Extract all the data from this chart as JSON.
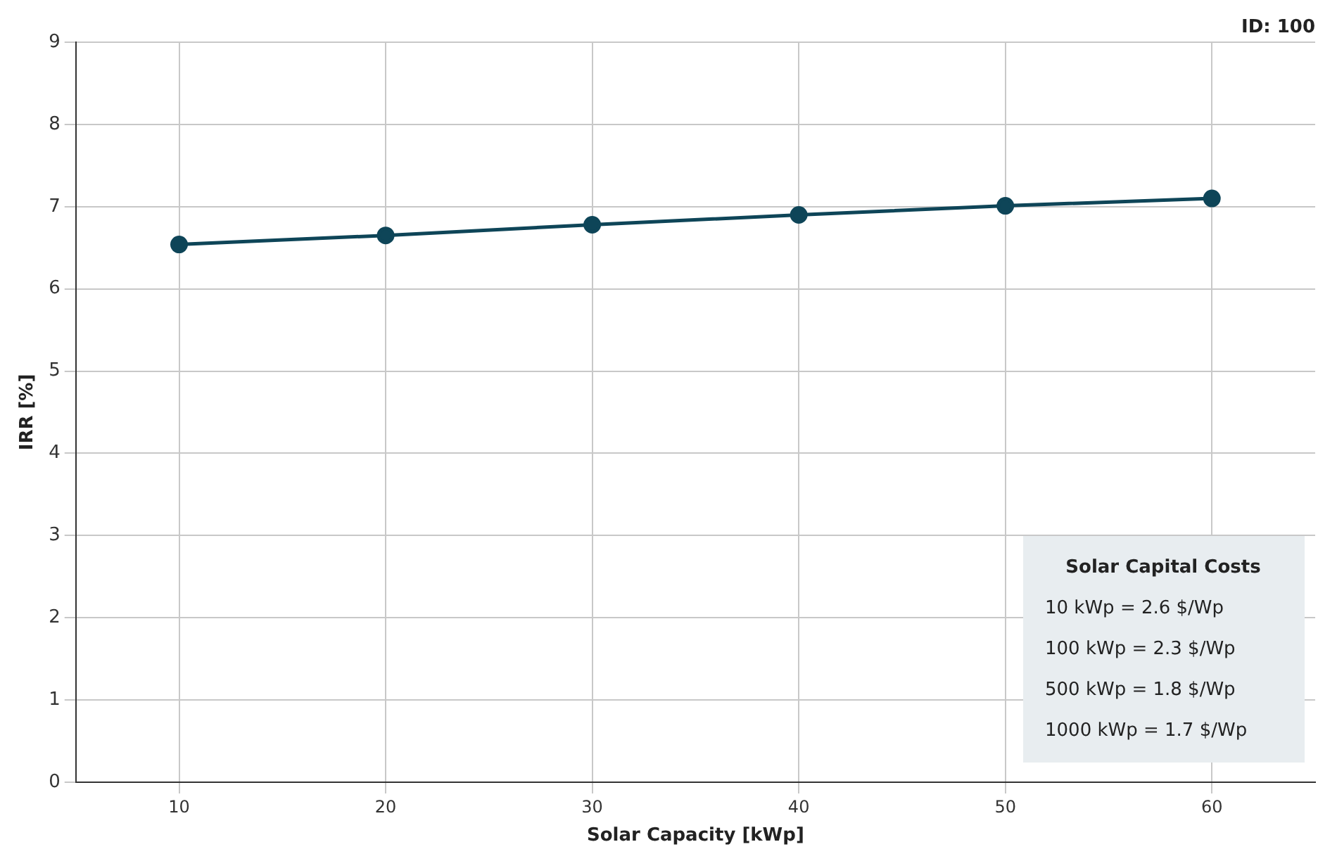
{
  "chart_data": {
    "type": "line",
    "xlabel": "Solar Capacity [kWp]",
    "ylabel": "IRR [%]",
    "x": [
      10,
      20,
      30,
      40,
      50,
      60
    ],
    "series": [
      {
        "color": "#0e4558",
        "values": [
          6.54,
          6.65,
          6.78,
          6.9,
          7.01,
          7.1
        ]
      }
    ],
    "xlim": [
      5,
      65
    ],
    "xticks": [
      10,
      20,
      30,
      40,
      50,
      60
    ],
    "ylim": [
      0,
      9
    ],
    "yticks": [
      0,
      1,
      2,
      3,
      4,
      5,
      6,
      7,
      8,
      9
    ],
    "grid": true,
    "legend": false,
    "marker": "circle",
    "line_style": "solid",
    "annotations": [
      "ID: 100",
      "Solar Capital Costs",
      "10 kWp = 2.6 $/Wp",
      "100 kWp = 2.3 $/Wp",
      "500 kWp = 1.8 $/Wp",
      "1000 kWp = 1.7 $/Wp"
    ]
  }
}
